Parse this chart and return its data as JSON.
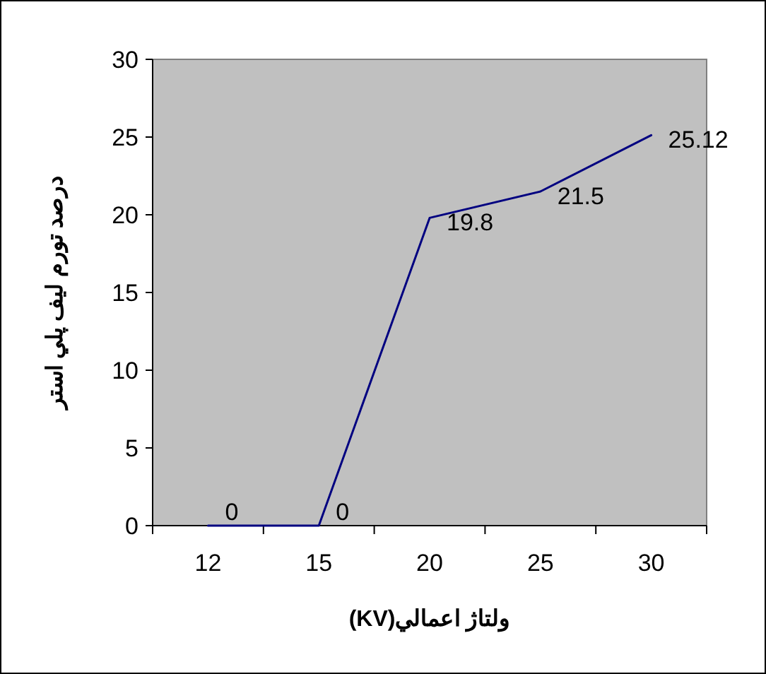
{
  "chart_data": {
    "type": "line",
    "xlabel": "ولتاژ اعمالي(KV)",
    "ylabel": "درصد تورم ليف پلي استر",
    "categories": [
      "12",
      "15",
      "20",
      "25",
      "30"
    ],
    "series": [
      {
        "color": "#000080",
        "values": [
          0,
          0,
          19.8,
          21.5,
          25.12
        ]
      }
    ],
    "ylim": [
      0,
      30
    ],
    "yticks": [
      0,
      5,
      10,
      15,
      20,
      25,
      30
    ],
    "data_labels": true,
    "grid": false,
    "marker": "none"
  }
}
